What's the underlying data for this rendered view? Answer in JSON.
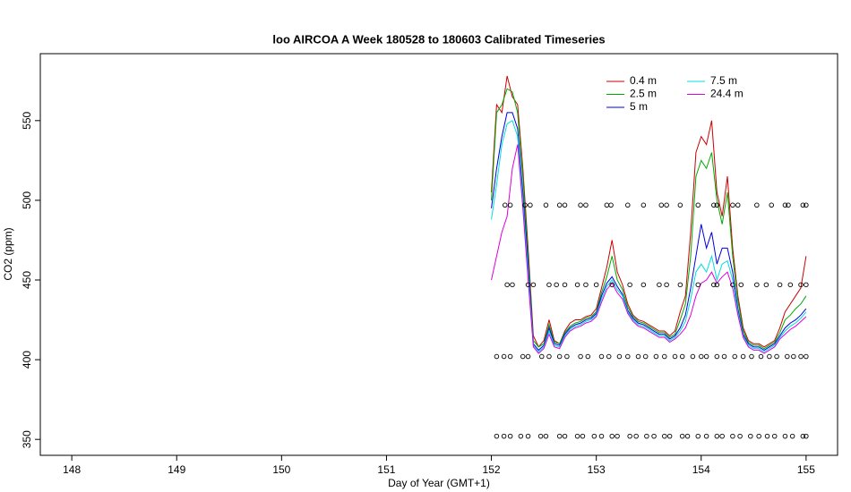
{
  "chart_data": {
    "type": "line",
    "title": "loo AIRCOA A  Week 180528 to 180603  Calibrated Timeseries",
    "x_label": "Day of Year (GMT+1)",
    "y_label": "CO2 (ppm)",
    "xlim": [
      147.7,
      155.3
    ],
    "ylim": [
      340,
      592
    ],
    "xticks": [
      148,
      149,
      150,
      151,
      152,
      153,
      154,
      155
    ],
    "yticks": [
      350,
      400,
      450,
      500,
      550
    ],
    "legend": "topright",
    "x": [
      152.0,
      152.05,
      152.1,
      152.15,
      152.2,
      152.25,
      152.3,
      152.35,
      152.4,
      152.45,
      152.5,
      152.55,
      152.6,
      152.65,
      152.7,
      152.75,
      152.8,
      152.85,
      152.9,
      152.95,
      153.0,
      153.05,
      153.1,
      153.15,
      153.2,
      153.25,
      153.3,
      153.35,
      153.4,
      153.45,
      153.5,
      153.55,
      153.6,
      153.65,
      153.7,
      153.75,
      153.8,
      153.85,
      153.9,
      153.95,
      154.0,
      154.05,
      154.1,
      154.15,
      154.2,
      154.25,
      154.3,
      154.35,
      154.4,
      154.45,
      154.5,
      154.55,
      154.6,
      154.65,
      154.7,
      154.75,
      154.8,
      154.85,
      154.9,
      154.95,
      155.0
    ],
    "series": [
      {
        "name": "0.4 m",
        "color": "#cc0000",
        "values": [
          505,
          560,
          555,
          578,
          565,
          560,
          520,
          470,
          415,
          408,
          412,
          425,
          412,
          410,
          418,
          423,
          425,
          425,
          427,
          428,
          432,
          445,
          458,
          475,
          455,
          447,
          435,
          428,
          425,
          424,
          422,
          420,
          418,
          418,
          415,
          418,
          430,
          440,
          480,
          530,
          540,
          535,
          550,
          505,
          490,
          515,
          470,
          440,
          420,
          412,
          410,
          410,
          408,
          410,
          412,
          420,
          430,
          435,
          440,
          445,
          465
        ]
      },
      {
        "name": "2.5 m",
        "color": "#00aa00",
        "values": [
          500,
          555,
          560,
          570,
          568,
          555,
          515,
          465,
          412,
          408,
          410,
          422,
          411,
          410,
          417,
          421,
          423,
          424,
          426,
          427,
          430,
          442,
          452,
          465,
          450,
          444,
          433,
          427,
          424,
          423,
          421,
          419,
          417,
          417,
          414,
          416,
          425,
          435,
          465,
          515,
          525,
          520,
          530,
          500,
          485,
          505,
          465,
          437,
          418,
          411,
          409,
          409,
          407,
          409,
          411,
          417,
          425,
          428,
          432,
          435,
          440
        ]
      },
      {
        "name": "5 m",
        "color": "#0000dd",
        "values": [
          495,
          520,
          540,
          555,
          555,
          545,
          505,
          460,
          410,
          406,
          409,
          420,
          410,
          409,
          416,
          420,
          422,
          423,
          425,
          426,
          429,
          440,
          448,
          452,
          446,
          441,
          431,
          426,
          423,
          422,
          420,
          418,
          416,
          416,
          413,
          415,
          420,
          428,
          445,
          465,
          485,
          470,
          480,
          460,
          470,
          470,
          455,
          432,
          416,
          410,
          408,
          408,
          406,
          408,
          410,
          415,
          420,
          423,
          425,
          428,
          432
        ]
      },
      {
        "name": "7.5 m",
        "color": "#00dddd",
        "values": [
          488,
          510,
          535,
          548,
          550,
          540,
          500,
          455,
          409,
          405,
          408,
          418,
          409,
          408,
          415,
          419,
          421,
          422,
          424,
          425,
          428,
          438,
          446,
          450,
          444,
          440,
          430,
          425,
          422,
          421,
          419,
          417,
          415,
          415,
          412,
          414,
          418,
          424,
          438,
          455,
          460,
          455,
          465,
          450,
          460,
          462,
          450,
          430,
          415,
          409,
          407,
          407,
          405,
          407,
          409,
          414,
          418,
          421,
          423,
          426,
          430
        ]
      },
      {
        "name": "24.4 m",
        "color": "#dd00dd",
        "values": [
          450,
          465,
          480,
          490,
          520,
          535,
          495,
          450,
          408,
          404,
          407,
          416,
          408,
          407,
          414,
          418,
          420,
          421,
          423,
          424,
          427,
          436,
          444,
          448,
          442,
          438,
          429,
          424,
          421,
          420,
          418,
          416,
          414,
          414,
          411,
          413,
          416,
          420,
          428,
          440,
          448,
          450,
          455,
          448,
          452,
          455,
          445,
          428,
          414,
          408,
          406,
          406,
          404,
          406,
          408,
          413,
          416,
          419,
          421,
          424,
          427
        ]
      }
    ],
    "points": {
      "x": [
        152.13,
        152.18,
        152.32,
        152.37,
        152.52,
        152.65,
        152.7,
        152.85,
        152.9,
        153.1,
        153.14,
        153.3,
        153.45,
        153.62,
        153.67,
        153.8,
        153.97,
        154.12,
        154.15,
        154.3,
        154.35,
        154.53,
        154.67,
        154.8,
        154.83,
        154.97,
        155.0,
        152.15,
        152.2,
        152.35,
        152.4,
        152.55,
        152.62,
        152.7,
        152.82,
        152.9,
        153.0,
        153.15,
        153.32,
        153.45,
        153.6,
        153.67,
        153.8,
        153.97,
        154.12,
        154.15,
        154.3,
        154.38,
        154.53,
        154.62,
        154.75,
        154.85,
        154.95,
        155.0,
        152.05,
        152.12,
        152.18,
        152.3,
        152.35,
        152.48,
        152.55,
        152.65,
        152.72,
        152.85,
        152.92,
        153.05,
        153.12,
        153.22,
        153.3,
        153.4,
        153.47,
        153.57,
        153.65,
        153.75,
        153.82,
        153.92,
        154.0,
        154.05,
        154.15,
        154.22,
        154.32,
        154.4,
        154.48,
        154.57,
        154.65,
        154.72,
        154.82,
        154.88,
        154.95,
        155.0,
        152.05,
        152.12,
        152.18,
        152.28,
        152.35,
        152.47,
        152.52,
        152.65,
        152.7,
        152.82,
        152.87,
        152.98,
        153.05,
        153.15,
        153.2,
        153.32,
        153.38,
        153.48,
        153.55,
        153.65,
        153.7,
        153.82,
        153.87,
        153.97,
        154.05,
        154.15,
        154.2,
        154.3,
        154.37,
        154.47,
        154.55,
        154.63,
        154.7,
        154.8,
        154.87,
        154.97,
        155.0
      ],
      "y": [
        497,
        497,
        497,
        497,
        497,
        497,
        497,
        497,
        497,
        497,
        497,
        497,
        497,
        497,
        497,
        497,
        497,
        497,
        497,
        497,
        497,
        497,
        497,
        497,
        497,
        497,
        497,
        447,
        447,
        447,
        447,
        447,
        447,
        447,
        447,
        447,
        447,
        447,
        447,
        447,
        447,
        447,
        447,
        447,
        447,
        447,
        447,
        447,
        447,
        447,
        447,
        447,
        447,
        447,
        402,
        402,
        402,
        402,
        402,
        402,
        402,
        402,
        402,
        402,
        402,
        402,
        402,
        402,
        402,
        402,
        402,
        402,
        402,
        402,
        402,
        402,
        402,
        402,
        402,
        402,
        402,
        402,
        402,
        402,
        402,
        402,
        402,
        402,
        402,
        402,
        352,
        352,
        352,
        352,
        352,
        352,
        352,
        352,
        352,
        352,
        352,
        352,
        352,
        352,
        352,
        352,
        352,
        352,
        352,
        352,
        352,
        352,
        352,
        352,
        352,
        352,
        352,
        352,
        352,
        352,
        352,
        352,
        352,
        352,
        352,
        352,
        352
      ]
    }
  }
}
